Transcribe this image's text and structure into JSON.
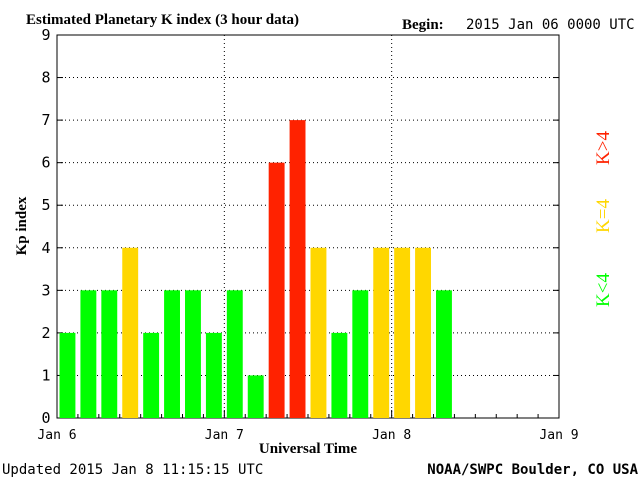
{
  "header": {
    "title": "Estimated Planetary K index (3 hour data)",
    "begin_label": "Begin:",
    "begin_value": "2015 Jan 06 0000 UTC"
  },
  "footer": {
    "updated": "Updated 2015 Jan  8 11:15:15 UTC",
    "source": "NOAA/SWPC Boulder, CO USA"
  },
  "legend": {
    "greater": "K>4",
    "equal": "K=4",
    "less": "K<4"
  },
  "colors": {
    "less": "#00ff00",
    "equal": "#ffd700",
    "greater": "#ff2200",
    "grid": "#000000",
    "axis": "#000000"
  },
  "chart_data": {
    "type": "bar",
    "title": "Estimated Planetary K index (3 hour data)",
    "xlabel": "Universal Time",
    "ylabel": "Kp index",
    "ylim": [
      0,
      9
    ],
    "yticks": [
      0,
      1,
      2,
      3,
      4,
      5,
      6,
      7,
      8,
      9
    ],
    "xlim_days": [
      0,
      3
    ],
    "xtick_labels": [
      "Jan 6",
      "Jan 7",
      "Jan 8",
      "Jan 9"
    ],
    "bar_interval_hours": 3,
    "grid": true,
    "values": [
      2,
      3,
      3,
      4,
      2,
      3,
      3,
      2,
      3,
      1,
      6,
      7,
      4,
      2,
      3,
      4,
      4,
      4,
      3
    ]
  }
}
